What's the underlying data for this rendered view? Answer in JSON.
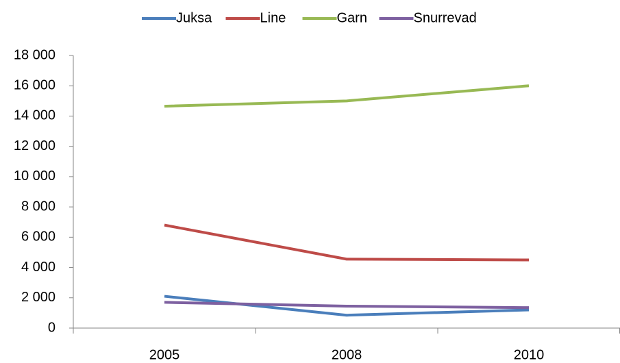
{
  "chart_data": {
    "type": "line",
    "categories": [
      "2005",
      "2008",
      "2010"
    ],
    "series": [
      {
        "name": "Juksa",
        "color": "#4a7ebb",
        "values": [
          2100,
          850,
          1200
        ]
      },
      {
        "name": "Line",
        "color": "#be4b48",
        "values": [
          6800,
          4550,
          4500
        ]
      },
      {
        "name": "Garn",
        "color": "#98b954",
        "values": [
          14650,
          15000,
          16000
        ]
      },
      {
        "name": "Snurrevad",
        "color": "#7d60a0",
        "values": [
          1700,
          1450,
          1350
        ]
      }
    ],
    "ylim": [
      0,
      18000
    ],
    "yticks": [
      0,
      {
        "value": 2000,
        "label": "2 000"
      },
      {
        "value": 4000,
        "label": "4 000"
      },
      {
        "value": 6000,
        "label": "6 000"
      },
      {
        "value": 8000,
        "label": "8 000"
      },
      {
        "value": 10000,
        "label": "10 000"
      },
      {
        "value": 12000,
        "label": "12 000"
      },
      {
        "value": 14000,
        "label": "14 000"
      },
      {
        "value": 16000,
        "label": "16 000"
      },
      {
        "value": 18000,
        "label": "18 000"
      }
    ],
    "grid": false,
    "legend": "top"
  }
}
